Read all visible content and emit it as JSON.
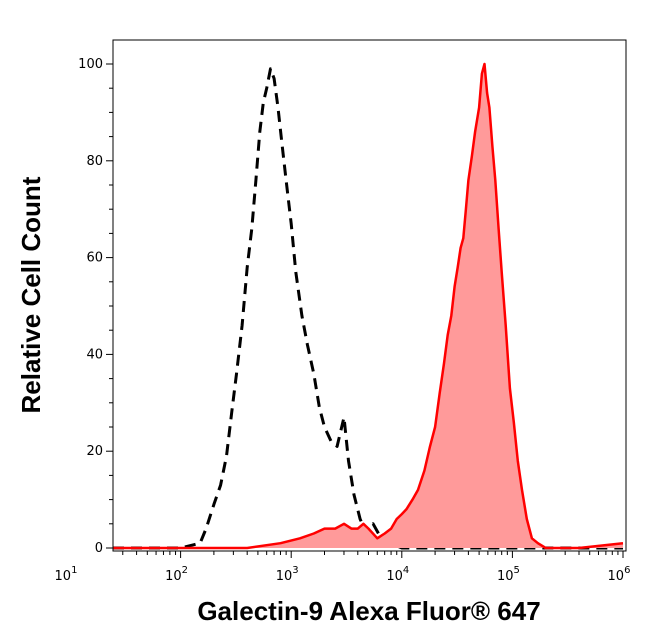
{
  "chart_data": {
    "type": "area",
    "title": "",
    "xlabel": "Galectin-9 Alexa Fluor® 647",
    "ylabel": "Relative Cell Count",
    "x_scale": "log",
    "xlim": [
      10,
      1000000
    ],
    "ylim": [
      0,
      105
    ],
    "x_ticks": [
      {
        "base": "10",
        "exp": "1"
      },
      {
        "base": "10",
        "exp": "2"
      },
      {
        "base": "10",
        "exp": "3"
      },
      {
        "base": "10",
        "exp": "4"
      },
      {
        "base": "10",
        "exp": "5"
      },
      {
        "base": "10",
        "exp": "6"
      }
    ],
    "y_ticks": [
      "0",
      "20",
      "40",
      "60",
      "80",
      "100"
    ],
    "grid": false,
    "legend": "none",
    "series": [
      {
        "style": "dashed",
        "color": "#000000",
        "fill": "none",
        "points": [
          [
            10,
            0
          ],
          [
            30,
            0
          ],
          [
            60,
            0
          ],
          [
            100,
            0
          ],
          [
            150,
            1
          ],
          [
            170,
            4
          ],
          [
            200,
            9
          ],
          [
            230,
            13
          ],
          [
            260,
            19
          ],
          [
            290,
            28
          ],
          [
            320,
            36
          ],
          [
            360,
            46
          ],
          [
            400,
            58
          ],
          [
            440,
            66
          ],
          [
            480,
            76
          ],
          [
            520,
            86
          ],
          [
            560,
            92
          ],
          [
            600,
            95
          ],
          [
            650,
            99
          ],
          [
            700,
            97
          ],
          [
            760,
            91
          ],
          [
            820,
            84
          ],
          [
            900,
            76
          ],
          [
            1000,
            67
          ],
          [
            1100,
            57
          ],
          [
            1250,
            48
          ],
          [
            1400,
            42
          ],
          [
            1600,
            36
          ],
          [
            1800,
            29
          ],
          [
            2000,
            25
          ],
          [
            2300,
            22
          ],
          [
            2600,
            21
          ],
          [
            3000,
            27
          ],
          [
            3300,
            18
          ],
          [
            3700,
            11
          ],
          [
            4200,
            6
          ],
          [
            4800,
            3
          ],
          [
            5500,
            5
          ],
          [
            6500,
            2
          ],
          [
            8000,
            1
          ],
          [
            10000,
            0
          ],
          [
            20000,
            0
          ],
          [
            50000,
            0
          ],
          [
            100000,
            0
          ],
          [
            1000000,
            0
          ]
        ]
      },
      {
        "style": "solid",
        "color": "#ff0000",
        "fill": "#ff9a9a",
        "points": [
          [
            10,
            0
          ],
          [
            50,
            0
          ],
          [
            100,
            0
          ],
          [
            200,
            0
          ],
          [
            400,
            0
          ],
          [
            800,
            1
          ],
          [
            1200,
            2
          ],
          [
            1600,
            3
          ],
          [
            2000,
            4
          ],
          [
            2500,
            4
          ],
          [
            3000,
            5
          ],
          [
            3500,
            4
          ],
          [
            4000,
            4
          ],
          [
            4500,
            5
          ],
          [
            5000,
            4
          ],
          [
            6000,
            2
          ],
          [
            7000,
            3
          ],
          [
            8000,
            4
          ],
          [
            9000,
            6
          ],
          [
            10000,
            7
          ],
          [
            11000,
            8
          ],
          [
            12500,
            10
          ],
          [
            14000,
            12
          ],
          [
            16000,
            16
          ],
          [
            18000,
            21
          ],
          [
            20000,
            25
          ],
          [
            22000,
            32
          ],
          [
            24000,
            38
          ],
          [
            26000,
            44
          ],
          [
            28000,
            48
          ],
          [
            30000,
            54
          ],
          [
            32000,
            58
          ],
          [
            34000,
            62
          ],
          [
            36000,
            64
          ],
          [
            38000,
            70
          ],
          [
            40000,
            76
          ],
          [
            43000,
            81
          ],
          [
            46000,
            86
          ],
          [
            50000,
            91
          ],
          [
            53000,
            98
          ],
          [
            56000,
            100
          ],
          [
            59000,
            94
          ],
          [
            62000,
            91
          ],
          [
            66000,
            83
          ],
          [
            70000,
            76
          ],
          [
            75000,
            66
          ],
          [
            80000,
            57
          ],
          [
            87000,
            46
          ],
          [
            95000,
            33
          ],
          [
            103000,
            26
          ],
          [
            112000,
            18
          ],
          [
            122000,
            12
          ],
          [
            135000,
            6
          ],
          [
            150000,
            2
          ],
          [
            170000,
            1
          ],
          [
            200000,
            0
          ],
          [
            400000,
            0
          ],
          [
            1000000,
            1
          ]
        ]
      }
    ]
  }
}
